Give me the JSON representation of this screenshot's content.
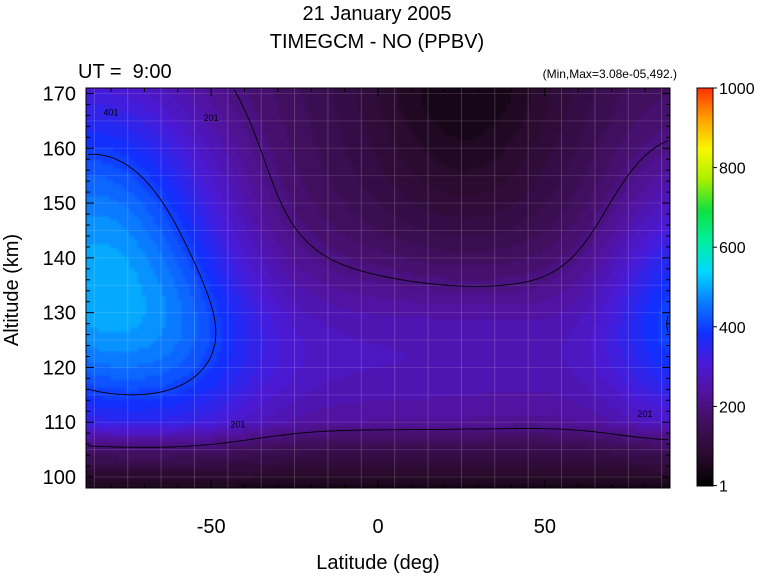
{
  "title": "21 January 2005",
  "subtitle": "TIMEGCM - NO (PPBV)",
  "time_label": "UT =  9:00",
  "minmax_label": "(Min,Max=3.08e-05,492.)",
  "colors": {
    "colormap": [
      "#000000",
      "#2a0b2e",
      "#3e0f58",
      "#52129a",
      "#4a1ad8",
      "#1030ff",
      "#0a7cff",
      "#00d8ff",
      "#00f0a0",
      "#10e040",
      "#a8f000",
      "#f8f800",
      "#ffa000",
      "#ff3000"
    ],
    "contour_line": "#000000",
    "grid_line": "#ffffff"
  },
  "chart_data": {
    "type": "heatmap",
    "title": "21 January 2005",
    "subtitle": "TIMEGCM - NO (PPBV)",
    "xlabel": "Latitude (deg)",
    "ylabel": "Altitude (km)",
    "xlim": [
      -87.5,
      87.5
    ],
    "ylim": [
      98,
      171
    ],
    "xticks": [
      -50,
      0,
      50
    ],
    "xtick_labels": [
      "-50",
      "0",
      "50"
    ],
    "yticks": [
      100,
      110,
      120,
      130,
      140,
      150,
      160,
      170
    ],
    "ytick_labels": [
      "100",
      "110",
      "120",
      "130",
      "140",
      "150",
      "160",
      "170"
    ],
    "colorbar": {
      "range": [
        1,
        1000
      ],
      "ticks": [
        1,
        200,
        400,
        600,
        800,
        1000
      ],
      "tick_labels": [
        "1",
        "200",
        "400",
        "600",
        "800",
        "1000"
      ]
    },
    "contour_labels": [
      {
        "text": "401",
        "lat": -80,
        "alt": 166
      },
      {
        "text": "201",
        "lat": -50,
        "alt": 165
      },
      {
        "text": "201",
        "lat": -42,
        "alt": 109
      },
      {
        "text": "201",
        "lat": 80,
        "alt": 111
      }
    ],
    "min": 3.08e-05,
    "max": 492
  }
}
